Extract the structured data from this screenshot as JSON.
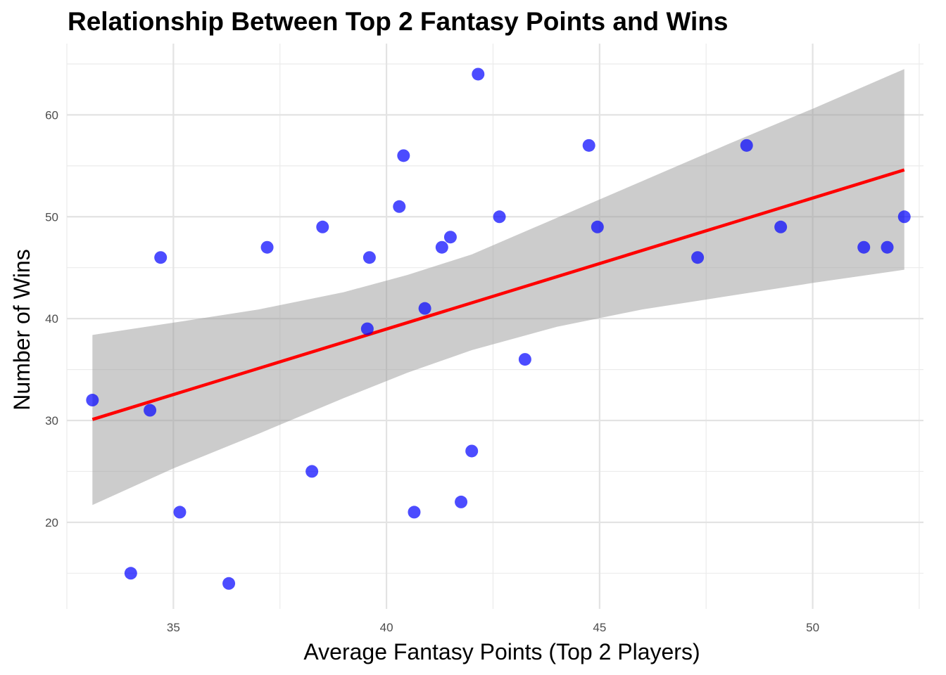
{
  "chart_data": {
    "type": "scatter",
    "title": "Relationship Between Top 2 Fantasy Points and Wins",
    "xlabel": "Average Fantasy Points (Top 2 Players)",
    "ylabel": "Number of Wins",
    "xlim": [
      32.5,
      52.6
    ],
    "ylim": [
      11.5,
      67
    ],
    "x_ticks": [
      35,
      40,
      45,
      50
    ],
    "y_ticks": [
      20,
      30,
      40,
      50,
      60
    ],
    "grid": true,
    "point_color": "#0000ff",
    "point_opacity": 0.7,
    "trend_color": "#ff0000",
    "band_color": "#999999",
    "band_opacity": 0.5,
    "points": [
      {
        "x": 33.1,
        "y": 32
      },
      {
        "x": 34.0,
        "y": 15
      },
      {
        "x": 34.45,
        "y": 31
      },
      {
        "x": 34.7,
        "y": 46
      },
      {
        "x": 35.15,
        "y": 21
      },
      {
        "x": 36.3,
        "y": 14
      },
      {
        "x": 37.2,
        "y": 47
      },
      {
        "x": 38.25,
        "y": 25
      },
      {
        "x": 38.5,
        "y": 49
      },
      {
        "x": 39.55,
        "y": 39
      },
      {
        "x": 39.6,
        "y": 46
      },
      {
        "x": 40.3,
        "y": 51
      },
      {
        "x": 40.4,
        "y": 56
      },
      {
        "x": 40.65,
        "y": 21
      },
      {
        "x": 40.9,
        "y": 41
      },
      {
        "x": 41.3,
        "y": 47
      },
      {
        "x": 41.5,
        "y": 48
      },
      {
        "x": 41.75,
        "y": 22
      },
      {
        "x": 42.0,
        "y": 27
      },
      {
        "x": 42.15,
        "y": 64
      },
      {
        "x": 42.65,
        "y": 50
      },
      {
        "x": 43.25,
        "y": 36
      },
      {
        "x": 44.75,
        "y": 57
      },
      {
        "x": 44.95,
        "y": 49
      },
      {
        "x": 47.3,
        "y": 46
      },
      {
        "x": 48.45,
        "y": 57
      },
      {
        "x": 49.25,
        "y": 49
      },
      {
        "x": 51.2,
        "y": 47
      },
      {
        "x": 51.75,
        "y": 47
      },
      {
        "x": 52.15,
        "y": 50
      }
    ],
    "trend_line": {
      "x": [
        33.1,
        52.15
      ],
      "y": [
        30.1,
        54.6
      ]
    },
    "confidence_band": {
      "x": [
        33.1,
        35.0,
        37.0,
        39.0,
        40.5,
        42.0,
        44.0,
        46.0,
        48.0,
        50.0,
        52.15
      ],
      "lower": [
        21.7,
        25.3,
        28.7,
        32.2,
        34.7,
        36.9,
        39.2,
        40.9,
        42.2,
        43.5,
        44.8
      ],
      "upper": [
        38.4,
        39.6,
        40.9,
        42.6,
        44.3,
        46.3,
        49.9,
        53.5,
        57.1,
        60.6,
        64.5
      ]
    }
  }
}
